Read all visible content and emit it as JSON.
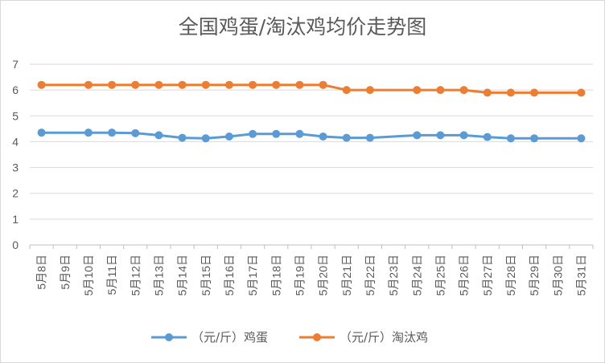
{
  "chart_data": {
    "type": "line",
    "title": "全国鸡蛋/淘汰鸡均价走势图",
    "categories": [
      "5月8日",
      "5月9日",
      "5月10日",
      "5月11日",
      "5月12日",
      "5月13日",
      "5月14日",
      "5月15日",
      "5月16日",
      "5月17日",
      "5月18日",
      "5月19日",
      "5月20日",
      "5月21日",
      "5月22日",
      "5月23日",
      "5月24日",
      "5月25日",
      "5月26日",
      "5月27日",
      "5月28日",
      "5月29日",
      "5月30日",
      "5月31日"
    ],
    "ylim": [
      0,
      7
    ],
    "yticks": [
      0,
      1,
      2,
      3,
      4,
      5,
      6,
      7
    ],
    "grid": true,
    "legend_position": "bottom",
    "series": [
      {
        "name": "（元/斤）鸡蛋",
        "color": "#5B9BD5",
        "values": [
          4.35,
          null,
          4.35,
          4.35,
          4.33,
          4.25,
          4.15,
          4.13,
          4.2,
          4.3,
          4.3,
          4.3,
          4.2,
          4.15,
          4.15,
          null,
          4.25,
          4.25,
          4.25,
          4.18,
          4.13,
          4.13,
          null,
          4.13
        ]
      },
      {
        "name": "（元/斤）淘汰鸡",
        "color": "#ED7D31",
        "values": [
          6.2,
          null,
          6.2,
          6.2,
          6.2,
          6.2,
          6.2,
          6.2,
          6.2,
          6.2,
          6.2,
          6.2,
          6.2,
          6.0,
          6.0,
          null,
          6.0,
          6.0,
          6.0,
          5.9,
          5.9,
          5.9,
          null,
          5.9
        ]
      }
    ]
  }
}
